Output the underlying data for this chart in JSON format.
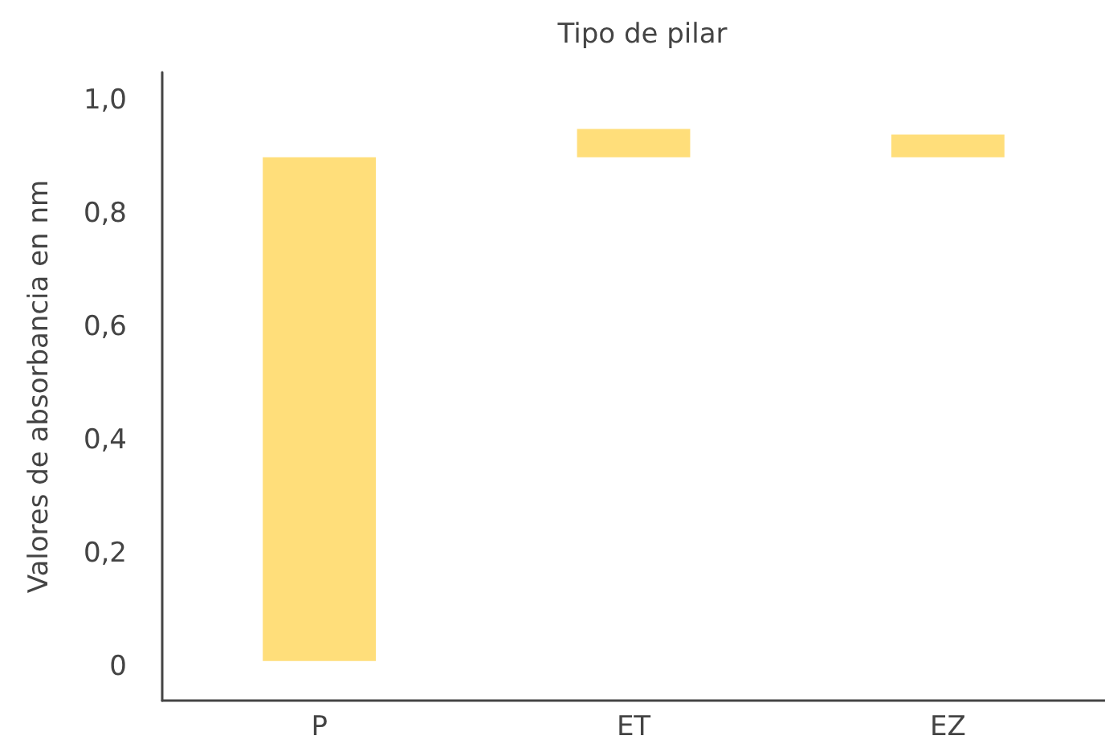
{
  "chart_data": {
    "type": "bar",
    "title": "Tipo de pilar",
    "ylabel": "Valores de absorbancia en nm",
    "categories": [
      "P",
      "ET",
      "EZ"
    ],
    "base": [
      0.01,
      0.9,
      0.9
    ],
    "values": [
      0.89,
      0.05,
      0.04
    ],
    "color": "#ffde7a",
    "ylim": [
      -0.06,
      1.05
    ],
    "yticks": [
      0,
      {
        "value": 0.2,
        "label": "0,2"
      },
      {
        "value": 0.4,
        "label": "0,4"
      },
      {
        "value": 0.6,
        "label": "0,6"
      },
      {
        "value": 0.8,
        "label": "0,8"
      },
      {
        "value": 1.0,
        "label": "1,0"
      }
    ],
    "grid": false
  }
}
